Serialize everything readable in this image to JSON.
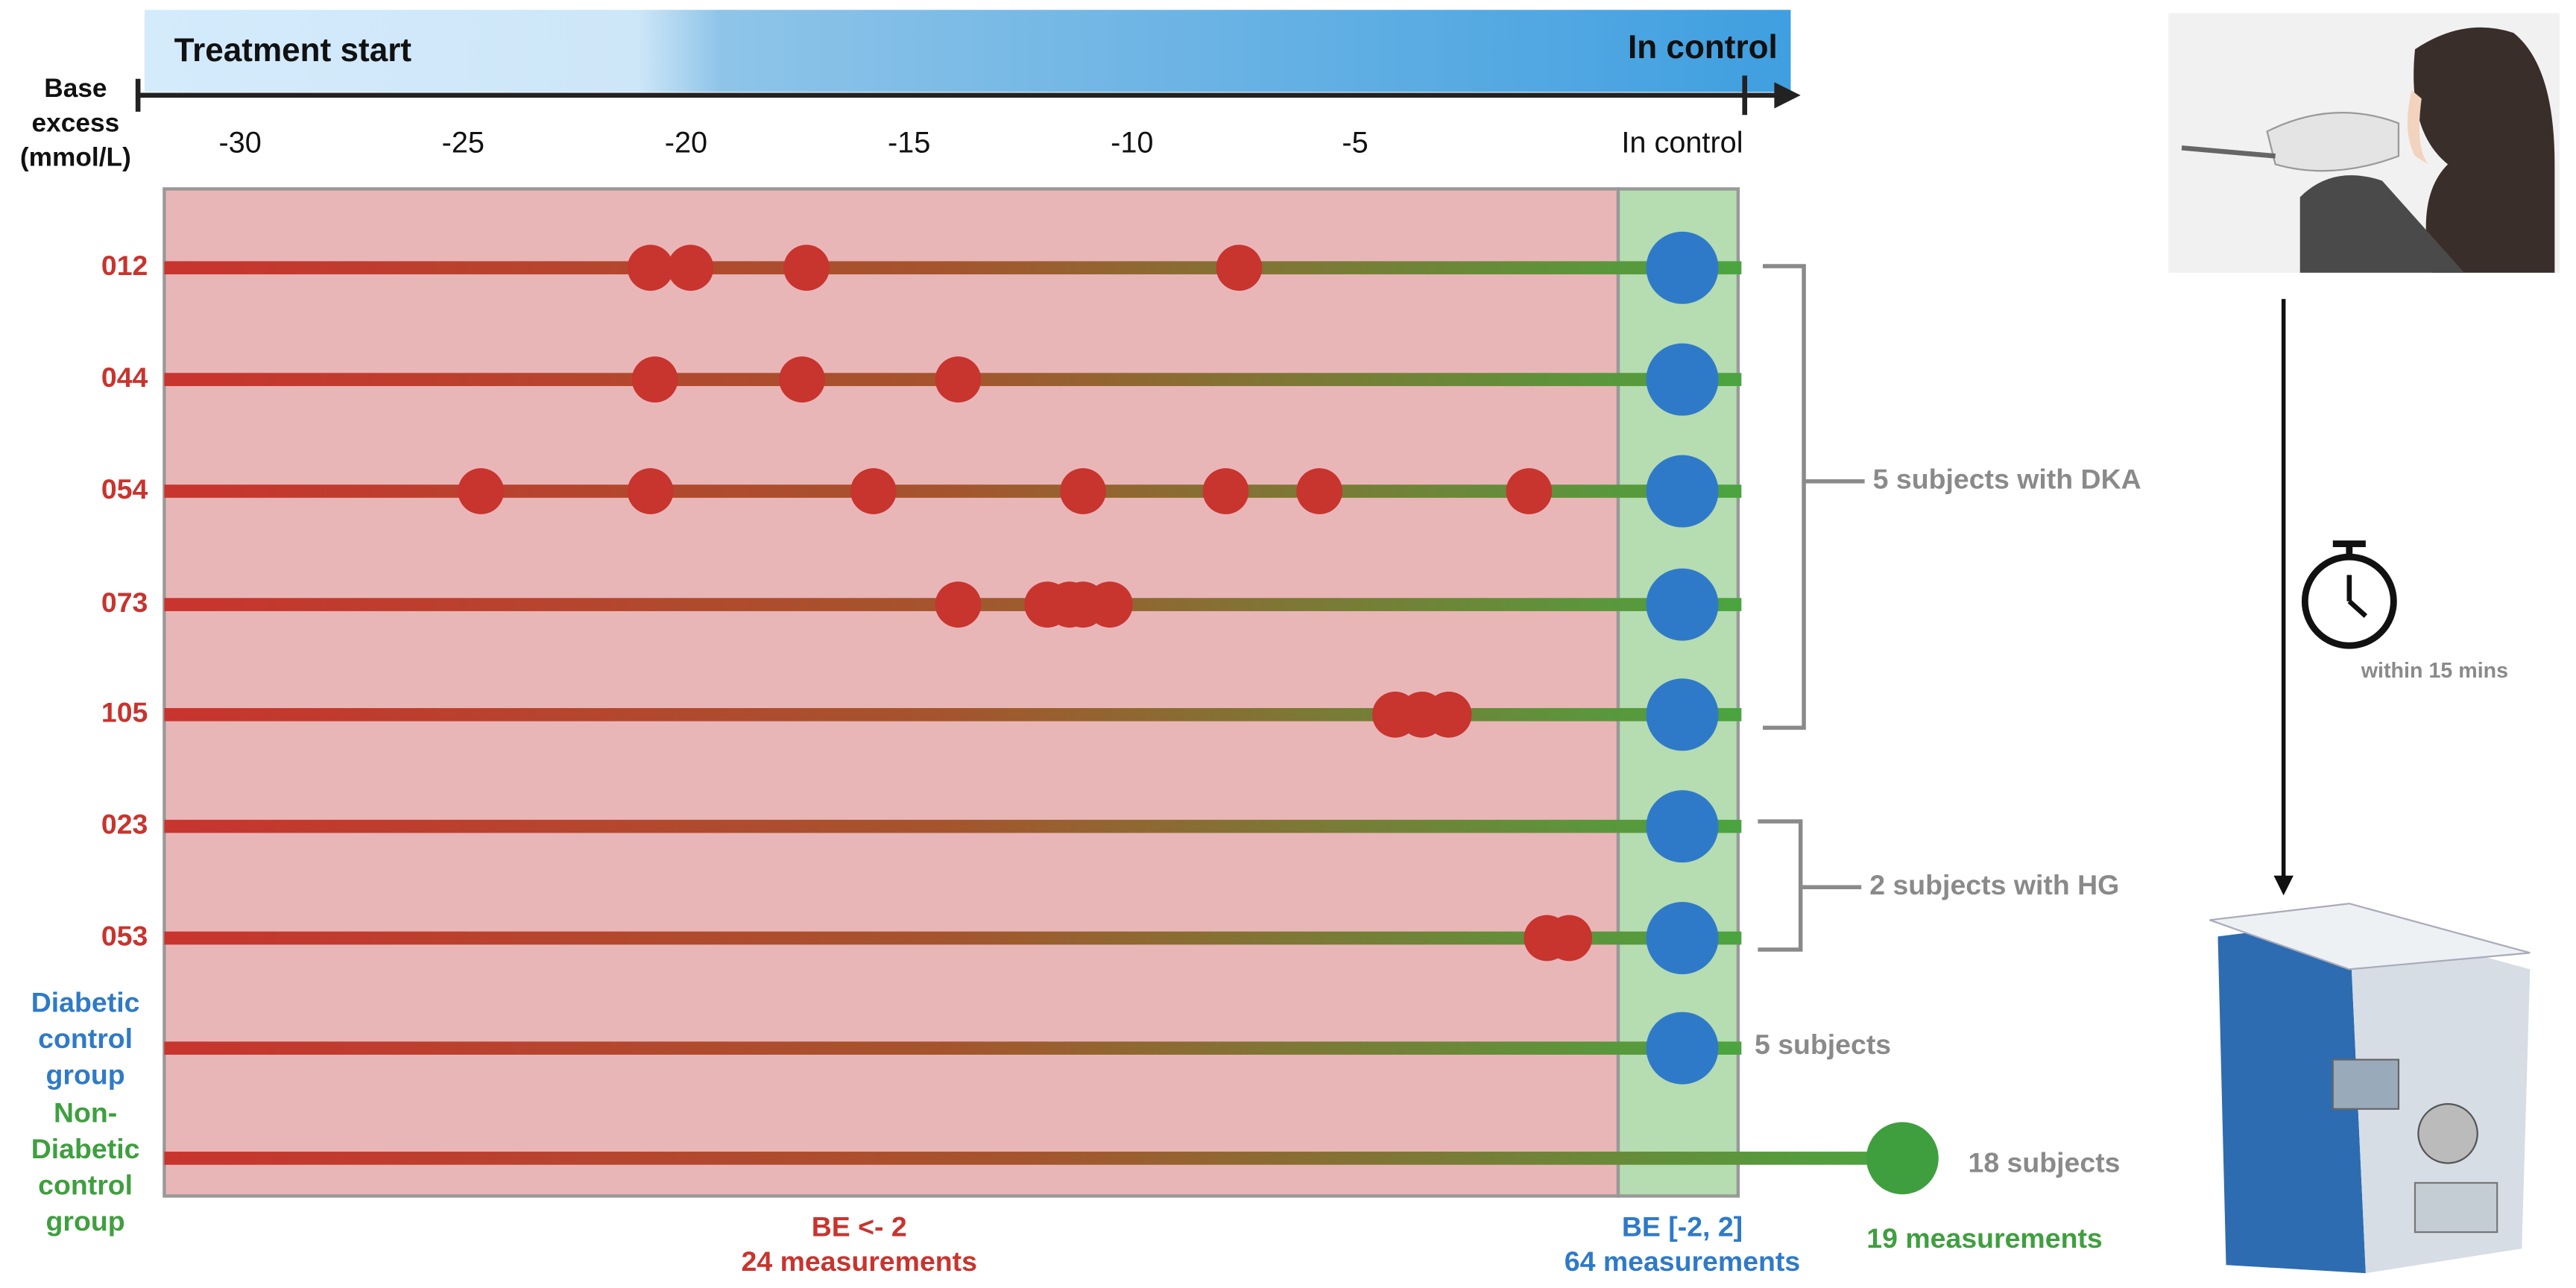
{
  "banner": {
    "start": "Treatment start",
    "end": "In control"
  },
  "axis": {
    "label": "Base excess (mmol/L)",
    "ticks": [
      -30,
      -25,
      -20,
      -15,
      -10,
      -5
    ],
    "control_label": "In control",
    "xlim": [
      -31.7,
      0.9
    ]
  },
  "rows": [
    {
      "label": "012",
      "measurements": [
        -20.8,
        -19.9,
        -17.3,
        -7.6
      ]
    },
    {
      "label": "044",
      "measurements": [
        -20.7,
        -17.4,
        -13.9
      ]
    },
    {
      "label": "054",
      "measurements": [
        -24.6,
        -20.8,
        -15.8,
        -11.1,
        -7.9,
        -5.8,
        -1.1
      ]
    },
    {
      "label": "073",
      "measurements": [
        -13.9,
        -11.9,
        -11.4,
        -11.1,
        -10.5
      ]
    },
    {
      "label": "105",
      "measurements": [
        -4.1,
        -3.5,
        -2.9
      ]
    },
    {
      "label": "023",
      "measurements": []
    },
    {
      "label": "053",
      "measurements": [
        -0.7,
        -0.2
      ]
    }
  ],
  "groups": {
    "diabetic": "Diabetic control group",
    "non_diabetic": "Non-Diabetic control group"
  },
  "brackets": {
    "dka": "5 subjects with DKA",
    "hg": "2 subjects with HG",
    "diabetic": "5 subjects",
    "non_diabetic": "18 subjects"
  },
  "footer": {
    "red_range": "BE <- 2",
    "red_count": "24 measurements",
    "blue_range": "BE [-2, 2]",
    "blue_count": "64 measurements",
    "green_count": "19 measurements"
  },
  "timer": "within 15 mins"
}
